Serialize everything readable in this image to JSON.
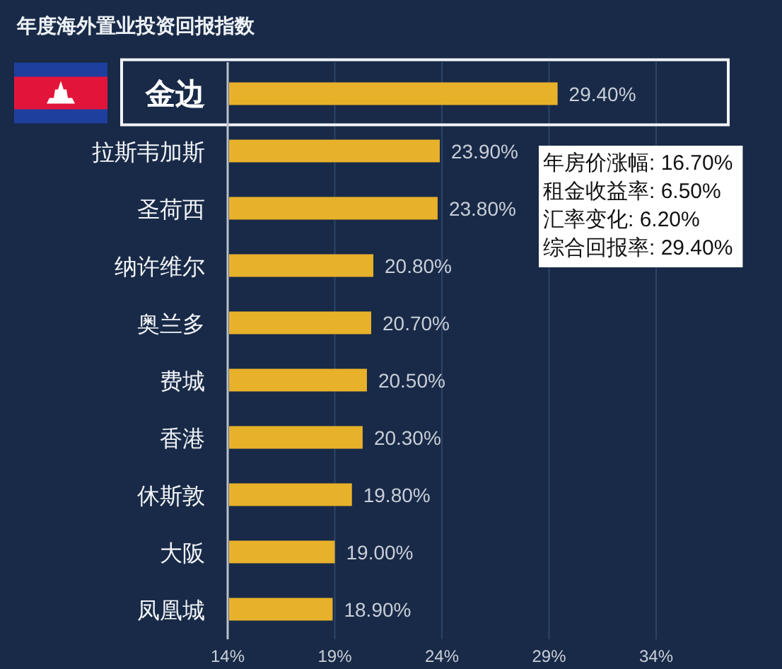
{
  "chart_data": {
    "type": "bar",
    "orientation": "horizontal",
    "title": "年度海外置业投资回报指数",
    "categories": [
      "金边",
      "拉斯韦加斯",
      "圣荷西",
      "纳许维尔",
      "奥兰多",
      "费城",
      "香港",
      "休斯敦",
      "大阪",
      "凤凰城"
    ],
    "values": [
      29.4,
      23.9,
      23.8,
      20.8,
      20.7,
      20.5,
      20.3,
      19.8,
      19.0,
      18.9
    ],
    "value_labels": [
      "29.40%",
      "23.90%",
      "23.80%",
      "20.80%",
      "20.70%",
      "20.50%",
      "20.30%",
      "19.80%",
      "19.00%",
      "18.90%"
    ],
    "color": "#e8b12a",
    "xlim": [
      14,
      34
    ],
    "xticks": [
      {
        "value": 14,
        "label": "14%"
      },
      {
        "value": 19,
        "label": "19%"
      },
      {
        "value": 24,
        "label": "24%"
      },
      {
        "value": 29,
        "label": "29%"
      },
      {
        "value": 34,
        "label": "34%"
      }
    ],
    "grid": "x",
    "annotations": [
      "年房价涨幅: 16.70%",
      "租金收益率: 6.50%",
      "汇率变化: 6.20%",
      "综合回报率: 29.40%"
    ]
  }
}
